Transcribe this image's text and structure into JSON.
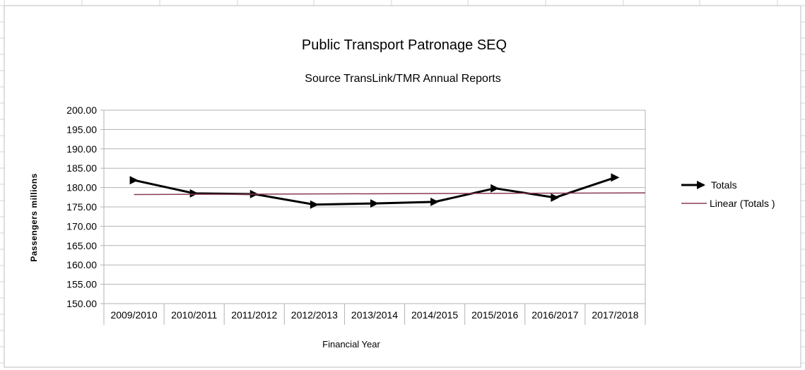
{
  "chart_data": {
    "type": "line",
    "title": "Public Transport Patronage SEQ",
    "subtitle": "Source TransLink/TMR Annual Reports",
    "xlabel": "Financial Year",
    "ylabel": "Passengers millions",
    "categories": [
      "2009/2010",
      "2010/2011",
      "2011/2012",
      "2012/2013",
      "2013/2014",
      "2014/2015",
      "2015/2016",
      "2016/2017",
      "2017/2018"
    ],
    "ylim": [
      150,
      200
    ],
    "yticks": [
      "150.00",
      "155.00",
      "160.00",
      "165.00",
      "170.00",
      "175.00",
      "180.00",
      "185.00",
      "190.00",
      "195.00",
      "200.00"
    ],
    "grid": true,
    "legend_position": "right",
    "series": [
      {
        "name": "Totals",
        "color": "#000000",
        "marker": "arrow-right",
        "values": [
          181.9,
          178.5,
          178.3,
          175.6,
          175.9,
          176.3,
          179.8,
          177.4,
          182.6
        ]
      },
      {
        "name": "Linear (Totals )",
        "color": "#8b3a5a",
        "kind": "trendline",
        "values": [
          178.2,
          178.25,
          178.3,
          178.35,
          178.4,
          178.45,
          178.5,
          178.55,
          178.6
        ]
      }
    ]
  }
}
